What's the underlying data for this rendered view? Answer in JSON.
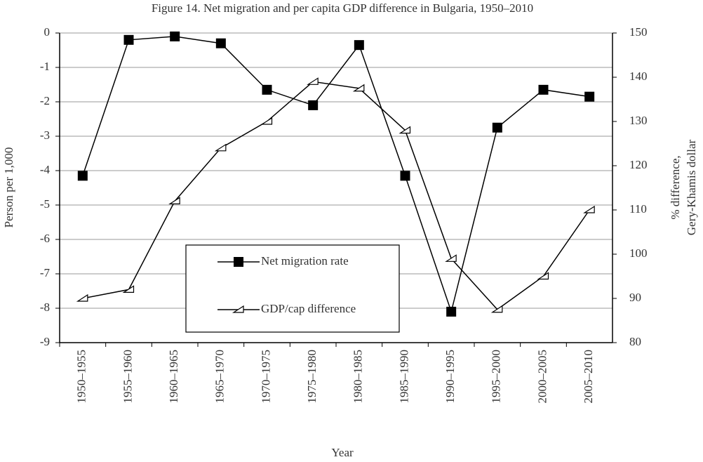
{
  "chart_data": {
    "type": "line",
    "title": "Figure 14. Net migration and per capita GDP difference in Bulgaria, 1950–2010",
    "x_label": "Year",
    "y_label": "Person per 1,000",
    "y2_label": [
      "% difference,",
      "Gery-Khamis dollar"
    ],
    "categories": [
      "1950–1955",
      "1955–1960",
      "1960–1965",
      "1965–1970",
      "1970–1975",
      "1975–1980",
      "1980–1985",
      "1985–1990",
      "1990–1995",
      "1995–2000",
      "2000–2005",
      "2005–2010"
    ],
    "series": [
      {
        "name": "Net migration rate",
        "color": "#000000",
        "marker": "square",
        "values": [
          -4.15,
          -0.2,
          -0.1,
          -0.3,
          -1.65,
          -2.1,
          -0.35,
          -4.15,
          -8.1,
          -2.75,
          -1.65,
          -1.85
        ]
      },
      {
        "name": "GDP/cap difference",
        "color": "#000000",
        "marker": "triangle",
        "axis": "y2",
        "values": [
          90,
          92,
          112,
          124,
          130,
          139,
          137.5,
          128,
          99,
          87.5,
          95,
          110
        ]
      }
    ],
    "ylim": [
      -9,
      0
    ],
    "yticks": [
      0,
      -1,
      -2,
      -3,
      -4,
      -5,
      -6,
      -7,
      -8,
      -9
    ],
    "y2lim": [
      80,
      150
    ],
    "y2ticks": [
      80,
      90,
      100,
      110,
      120,
      130,
      140,
      150
    ],
    "grid": true
  }
}
